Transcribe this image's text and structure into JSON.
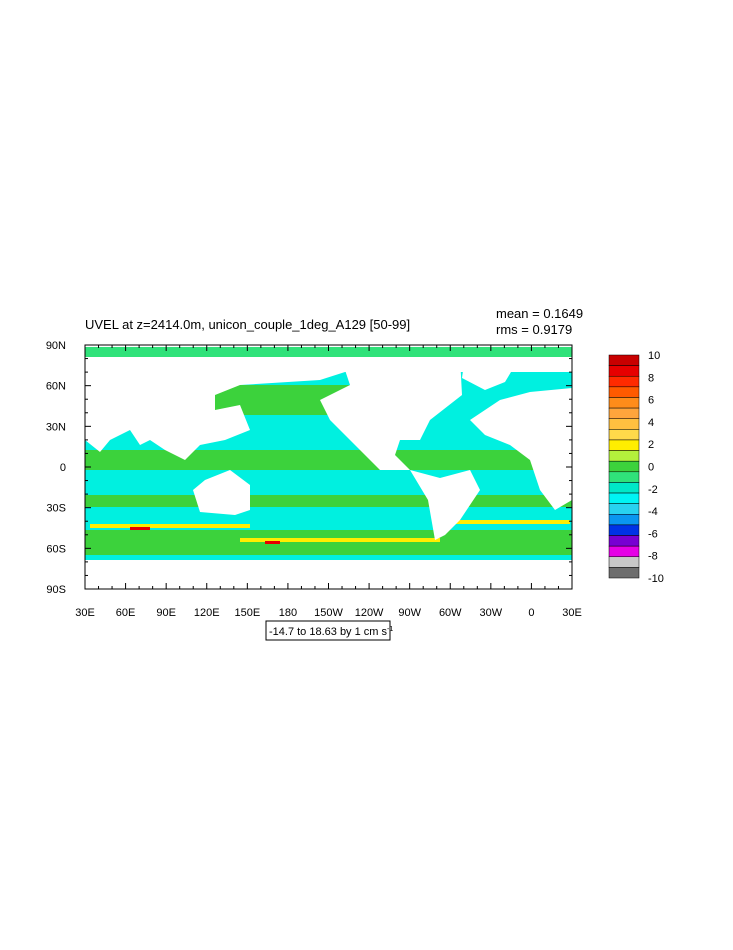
{
  "title": "UVEL at z=2414.0m, unicon_couple_1deg_A129 [50-99]",
  "stats": {
    "mean": "mean = 0.1649",
    "rms": "rms = 0.9179"
  },
  "x_axis": {
    "ticks": [
      "30E",
      "60E",
      "90E",
      "120E",
      "150E",
      "180",
      "150W",
      "120W",
      "90W",
      "60W",
      "30W",
      "0",
      "30E"
    ]
  },
  "y_axis": {
    "ticks": [
      "90N",
      "60N",
      "30N",
      "0",
      "30S",
      "60S",
      "90S"
    ]
  },
  "colorbar": {
    "labels": [
      10,
      8,
      6,
      4,
      2,
      0,
      -2,
      -4,
      -6,
      -8,
      -10
    ],
    "colors": [
      "#c80000",
      "#e60000",
      "#ff2a00",
      "#ff5a00",
      "#ff8c1a",
      "#ffa53c",
      "#ffc040",
      "#ffd94a",
      "#ffee00",
      "#b4f03c",
      "#3cd23c",
      "#30e27a",
      "#00e8c8",
      "#00f4f4",
      "#28d2f0",
      "#0a96f0",
      "#0032e6",
      "#7800d2",
      "#e600e6",
      "#c8c8c8",
      "#6e6e6e"
    ]
  },
  "info_label": {
    "text": "-14.7 to 18.63 by 1 cm s",
    "superscript": "-1"
  }
}
